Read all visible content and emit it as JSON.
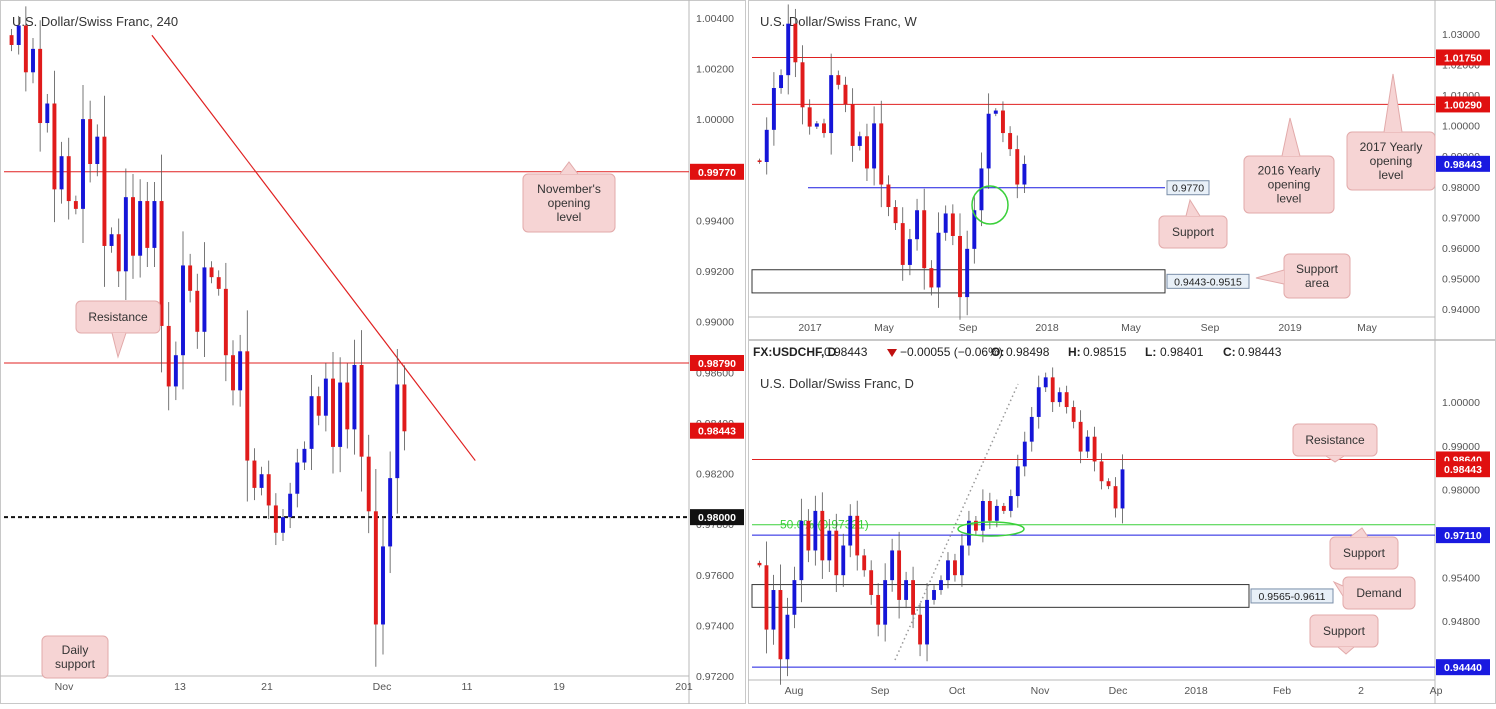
{
  "colors": {
    "bull": "#1515d8",
    "bear": "#e01b1b",
    "level": "#e02020",
    "support_line": "#1a1ae0",
    "green": "#3ad03a",
    "callout_bg": "#f6d4d4",
    "callout_border": "#e2aaaa"
  },
  "chart_data": [
    {
      "id": "h4",
      "type": "candlestick",
      "title": "U.S. Dollar/Swiss Franc, 240",
      "x_ticks": [
        "Nov",
        "13",
        "21",
        "Dec",
        "11",
        "19",
        "201"
      ],
      "y_ticks": [
        "1.00400",
        "1.00200",
        "1.00000",
        "0.99600",
        "0.99400",
        "0.99200",
        "0.99000",
        "0.98600",
        "0.98400",
        "0.98200",
        "0.97800",
        "0.97600",
        "0.97400",
        "0.97200"
      ],
      "ylim": [
        0.9715,
        1.0063
      ],
      "grid": false,
      "price_labels": [
        {
          "text": "0.99770",
          "value": 0.9977,
          "style": "red"
        },
        {
          "text": "0.98790",
          "value": 0.9879,
          "style": "red"
        },
        {
          "text": "0.98443",
          "value": 0.98443,
          "style": "red"
        },
        {
          "text": "0.98000",
          "value": 0.98,
          "style": "black"
        }
      ],
      "levels": [
        {
          "value": 0.9977,
          "style": "red-solid"
        },
        {
          "value": 0.9879,
          "style": "red-solid"
        },
        {
          "value": 0.98,
          "style": "black-dashed"
        }
      ],
      "trendline": {
        "from": {
          "bar": 0.215,
          "price": 1.0047
        },
        "to": {
          "bar": 0.685,
          "price": 0.9829
        }
      },
      "annotations": [
        {
          "text": [
            "November's",
            "opening",
            "level"
          ],
          "points_to": 0.9977
        },
        {
          "text": [
            "Resistance"
          ],
          "points_to": 0.9879
        },
        {
          "text": [
            "Daily",
            "support"
          ]
        }
      ],
      "series_path": [
        1.0042,
        1.0052,
        1.0028,
        1.004,
        1.0002,
        1.0012,
        0.9968,
        0.9985,
        0.9962,
        0.9958,
        1.0004,
        0.9981,
        0.9995,
        0.9939,
        0.9945,
        0.9926,
        0.9964,
        0.9934,
        0.9962,
        0.9938,
        0.9962,
        0.9898,
        0.9867,
        0.9883,
        0.9929,
        0.9916,
        0.9895,
        0.9928,
        0.9923,
        0.9917,
        0.9883,
        0.9865,
        0.9885,
        0.9829,
        0.9815,
        0.9822,
        0.9806,
        0.9792,
        0.98,
        0.9812,
        0.9828,
        0.9835,
        0.9862,
        0.9852,
        0.9871,
        0.9836,
        0.9869,
        0.9845,
        0.9878,
        0.9831,
        0.9803,
        0.9745,
        0.9785,
        0.982,
        0.9868,
        0.9844
      ]
    },
    {
      "id": "weekly",
      "type": "candlestick",
      "title": "U.S. Dollar/Swiss Franc, W",
      "x_ticks": [
        "2017",
        "May",
        "Sep",
        "2018",
        "May",
        "Sep",
        "2019",
        "May"
      ],
      "y_ticks": [
        "1.03000",
        "1.02000",
        "1.01000",
        "1.00000",
        "0.99000",
        "0.98000",
        "0.97000",
        "0.96000",
        "0.95000",
        "0.94000"
      ],
      "ylim": [
        0.9365,
        1.0335
      ],
      "grid": false,
      "price_labels": [
        {
          "text": "1.01750",
          "value": 1.0175,
          "style": "red"
        },
        {
          "text": "1.00290",
          "value": 1.0029,
          "style": "red"
        },
        {
          "text": "0.98443",
          "value": 0.98443,
          "style": "blue"
        }
      ],
      "levels": [
        {
          "value": 1.0175,
          "style": "red-solid"
        },
        {
          "value": 1.0029,
          "style": "red-solid"
        },
        {
          "value": 0.977,
          "style": "blue-solid",
          "label": "0.9770"
        }
      ],
      "zones": [
        {
          "from": 0.9443,
          "to": 0.9515,
          "label": "0.9443-0.9515"
        }
      ],
      "annotations": [
        {
          "text": [
            "2016 Yearly",
            "opening",
            "level"
          ],
          "points_to": 1.0029
        },
        {
          "text": [
            "2017 Yearly",
            "opening",
            "level"
          ],
          "points_to": 1.0175
        },
        {
          "text": [
            "Support"
          ],
          "points_to": 0.977
        },
        {
          "text": [
            "Support",
            "area"
          ],
          "points_to": 0.9515
        }
      ],
      "series_path": [
        0.985,
        0.995,
        1.008,
        1.012,
        1.028,
        1.016,
        1.002,
        0.996,
        0.997,
        0.994,
        1.012,
        1.009,
        1.003,
        0.99,
        0.993,
        0.983,
        0.997,
        0.978,
        0.971,
        0.966,
        0.953,
        0.961,
        0.97,
        0.952,
        0.946,
        0.963,
        0.969,
        0.962,
        0.943,
        0.958,
        0.97,
        0.983,
        1.0,
        1.001,
        0.994,
        0.989,
        0.978,
        0.9844
      ]
    },
    {
      "id": "daily",
      "type": "candlestick",
      "title": "U.S. Dollar/Swiss Franc, D",
      "info": {
        "symbol": "FX:USDCHF, D",
        "price": "0.98443",
        "change": "−0.00055 (−0.06%)",
        "open": "0.98498",
        "high": "0.98515",
        "low": "0.98401",
        "close": "0.98443"
      },
      "x_ticks": [
        "Aug",
        "Sep",
        "Oct",
        "Nov",
        "Dec",
        "2018",
        "Feb",
        "2",
        "Ap"
      ],
      "y_ticks": [
        "1.00000",
        "0.99000",
        "0.98000",
        "0.96000",
        "0.95400",
        "0.94800",
        "0.94200"
      ],
      "ylim": [
        0.9412,
        1.0055
      ],
      "grid": false,
      "price_labels": [
        {
          "text": "0.98640",
          "value": 0.9864,
          "style": "red"
        },
        {
          "text": "0.98443",
          "value": 0.98443,
          "style": "red"
        },
        {
          "text": "0.97110",
          "value": 0.9711,
          "style": "blue"
        },
        {
          "text": "0.94440",
          "value": 0.9444,
          "style": "blue"
        }
      ],
      "levels": [
        {
          "value": 0.9864,
          "style": "red-solid"
        },
        {
          "value": 0.9732,
          "style": "green-solid",
          "label": "50.0% (0.97321)"
        },
        {
          "value": 0.9711,
          "style": "blue-solid"
        },
        {
          "value": 0.9444,
          "style": "blue-solid"
        }
      ],
      "zones": [
        {
          "from": 0.9565,
          "to": 0.9611,
          "label": "0.9565-0.9611"
        }
      ],
      "annotations": [
        {
          "text": [
            "Resistance"
          ],
          "points_to": 0.9864
        },
        {
          "text": [
            "Support"
          ],
          "points_to": 0.9711
        },
        {
          "text": [
            "Demand"
          ],
          "points_to": 0.959
        },
        {
          "text": [
            "Support"
          ],
          "points_to": 0.9444
        }
      ],
      "series_path": [
        0.965,
        0.952,
        0.96,
        0.946,
        0.955,
        0.962,
        0.974,
        0.968,
        0.976,
        0.966,
        0.972,
        0.963,
        0.969,
        0.975,
        0.967,
        0.964,
        0.959,
        0.953,
        0.962,
        0.968,
        0.958,
        0.962,
        0.955,
        0.949,
        0.958,
        0.96,
        0.962,
        0.966,
        0.963,
        0.969,
        0.974,
        0.972,
        0.978,
        0.974,
        0.977,
        0.976,
        0.979,
        0.985,
        0.99,
        0.995,
        1.001,
        1.003,
        0.998,
        1.0,
        0.997,
        0.994,
        0.988,
        0.991,
        0.986,
        0.982,
        0.981,
        0.9765,
        0.9844
      ]
    }
  ]
}
